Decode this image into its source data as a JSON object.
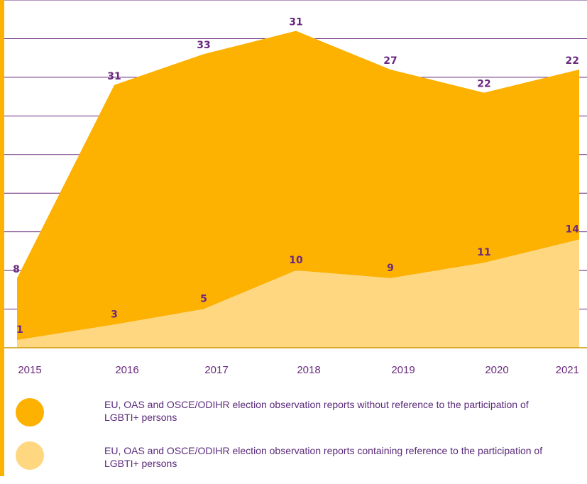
{
  "colors": {
    "without": "#fdb100",
    "containing": "#fed780",
    "label": "#6a2a7e",
    "gridline": "#6a2a7e",
    "axis_text": "#6a2a7e",
    "border_left": "#fdb100",
    "baseline": "#cc9900"
  },
  "chart_data": {
    "type": "area",
    "x": [
      "2015",
      "2016",
      "2017",
      "2018",
      "2019",
      "2020",
      "2021"
    ],
    "ylim": [
      0,
      45
    ],
    "series": [
      {
        "name": "EU, OAS and OSCE/ODIHR election observation reports without reference to the participation of LGBTI+ persons",
        "values": [
          8,
          31,
          33,
          31,
          27,
          22,
          22
        ],
        "color": "#fdb100"
      },
      {
        "name": "EU, OAS and OSCE/ODIHR election observation reports containing reference to the participation of LGBTI+ persons",
        "values": [
          1,
          3,
          5,
          10,
          9,
          11,
          14
        ],
        "color": "#fed780"
      }
    ],
    "stacked": true,
    "grid": true,
    "legend_position": "bottom"
  },
  "legend": [
    {
      "label": "EU, OAS and OSCE/ODIHR election observation reports without reference to the participation of LGBTI+ persons",
      "color": "#fdb100"
    },
    {
      "label": "EU, OAS and OSCE/ODIHR election observation reports containing reference to the participation of LGBTI+ persons",
      "color": "#fed780"
    }
  ]
}
